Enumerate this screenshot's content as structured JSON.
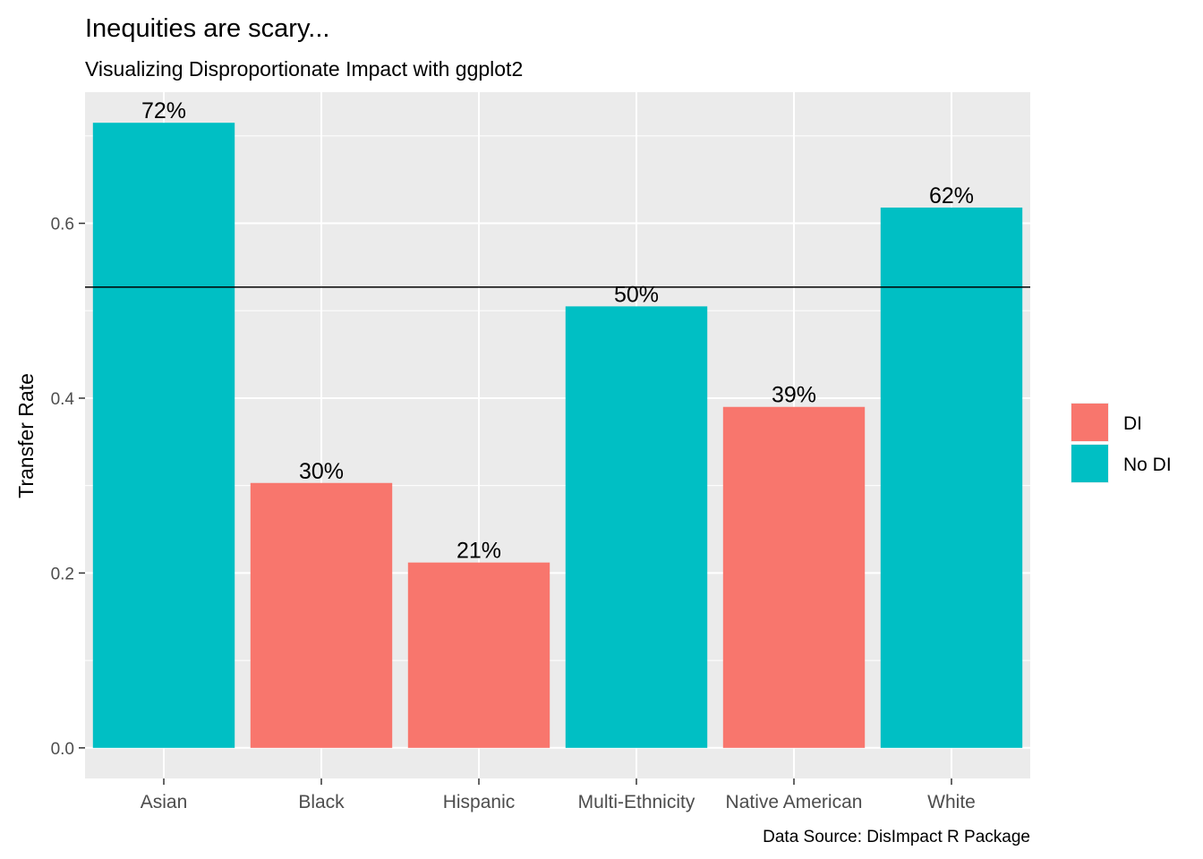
{
  "chart_data": {
    "type": "bar",
    "title": "Inequities are scary...",
    "subtitle": "Visualizing Disproportionate Impact with ggplot2",
    "caption": "Data Source: DisImpact R Package",
    "xlabel": "",
    "ylabel": "Transfer Rate",
    "ylim": [
      -0.035,
      0.75
    ],
    "yticks": [
      0.0,
      0.2,
      0.4,
      0.6
    ],
    "ytick_labels": [
      "0.0",
      "0.2",
      "0.4",
      "0.6"
    ],
    "reference_line": 0.527,
    "grid": true,
    "legend": {
      "position": "right",
      "items": [
        {
          "label": "DI",
          "color": "#F8766D"
        },
        {
          "label": "No DI",
          "color": "#00BFC4"
        }
      ]
    },
    "categories": [
      "Asian",
      "Black",
      "Hispanic",
      "Multi-Ethnicity",
      "Native American",
      "White"
    ],
    "values": [
      0.715,
      0.303,
      0.212,
      0.505,
      0.39,
      0.618
    ],
    "data_labels": [
      "72%",
      "30%",
      "21%",
      "50%",
      "39%",
      "62%"
    ],
    "groups": [
      "No DI",
      "DI",
      "DI",
      "No DI",
      "DI",
      "No DI"
    ]
  },
  "colors": {
    "panel_background": "#EBEBEB",
    "grid": "#FFFFFF",
    "axis_text": "#4D4D4D",
    "reference_line": "#000000"
  }
}
